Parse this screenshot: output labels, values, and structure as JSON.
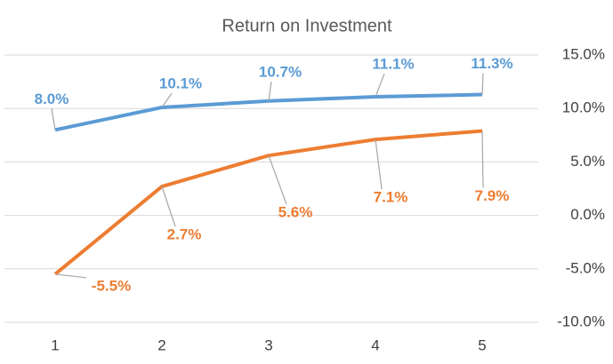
{
  "chart_data": {
    "type": "line",
    "title": "Return on Investment",
    "categories": [
      "1",
      "2",
      "3",
      "4",
      "5"
    ],
    "series": [
      {
        "color": "#5b9bd5",
        "values": [
          8.0,
          10.1,
          10.7,
          11.1,
          11.3
        ],
        "value_labels": [
          "8.0%",
          "10.1%",
          "10.7%",
          "11.1%",
          "11.3%"
        ]
      },
      {
        "color": "#ed7d31",
        "values": [
          -5.5,
          2.7,
          5.6,
          7.1,
          7.9
        ],
        "value_labels": [
          "-5.5%",
          "2.7%",
          "5.6%",
          "7.1%",
          "7.9%"
        ]
      }
    ],
    "ylim": [
      -10,
      15
    ],
    "yticks": [
      {
        "value": -10,
        "label": "-10.0%"
      },
      {
        "value": -5,
        "label": "-5.0%"
      },
      {
        "value": 0,
        "label": "0.0%"
      },
      {
        "value": 5,
        "label": "5.0%"
      },
      {
        "value": 10,
        "label": "10.0%"
      },
      {
        "value": 15,
        "label": "15.0%"
      }
    ],
    "y_axis_side": "right",
    "grid": true
  }
}
